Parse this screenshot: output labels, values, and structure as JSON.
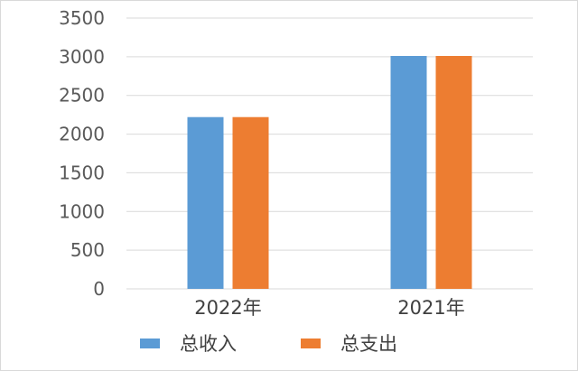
{
  "chart_data": {
    "type": "bar",
    "categories": [
      "2022年",
      "2021年"
    ],
    "series": [
      {
        "name": "总收入",
        "values": [
          2220,
          3010
        ],
        "color": "#5b9bd5"
      },
      {
        "name": "总支出",
        "values": [
          2220,
          3010
        ],
        "color": "#ed7d31"
      }
    ],
    "ylim": [
      0,
      3500
    ],
    "yticks": [
      0,
      500,
      1000,
      1500,
      2000,
      2500,
      3000,
      3500
    ],
    "grid": true,
    "legend_position": "bottom",
    "gridline_color": "#d9d9d9"
  }
}
